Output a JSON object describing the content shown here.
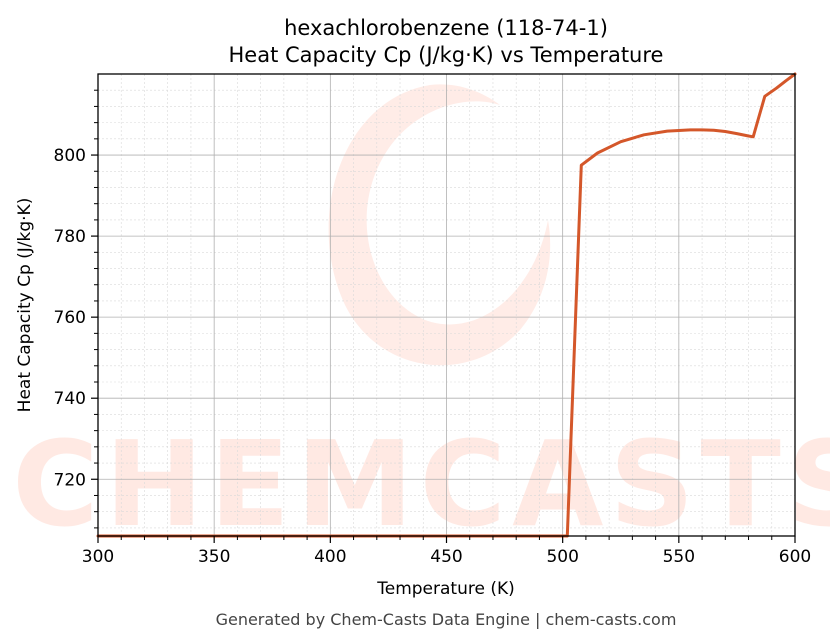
{
  "chart_data": {
    "type": "line",
    "title_line1": "hexachlorobenzene (118-74-1)",
    "title_line2": "Heat Capacity Cp (J/kg·K) vs Temperature",
    "xlabel": "Temperature (K)",
    "ylabel": "Heat Capacity Cp (J/kg·K)",
    "xlim": [
      300,
      600
    ],
    "ylim": [
      706,
      820
    ],
    "x_ticks": [
      300,
      350,
      400,
      450,
      500,
      550,
      600
    ],
    "y_ticks": [
      720,
      740,
      760,
      780,
      800
    ],
    "grid": true,
    "series": [
      {
        "color": "#d4572a",
        "x": [
          300,
          320,
          340,
          360,
          380,
          400,
          420,
          440,
          460,
          480,
          500,
          502,
          508,
          515,
          525,
          535,
          545,
          555,
          560,
          565,
          570,
          575,
          580,
          582,
          587,
          592,
          596,
          600
        ],
        "y": [
          706,
          706,
          706,
          706,
          706,
          706,
          706,
          706,
          706,
          706,
          706,
          706,
          797.5,
          800.5,
          803.3,
          805.0,
          805.9,
          806.2,
          806.2,
          806.1,
          805.8,
          805.3,
          804.7,
          804.5,
          814.5,
          816.5,
          818.3,
          820
        ]
      }
    ]
  },
  "watermark": "CHEMCASTS",
  "footer": "Generated by Chem-Casts Data Engine | chem-casts.com"
}
